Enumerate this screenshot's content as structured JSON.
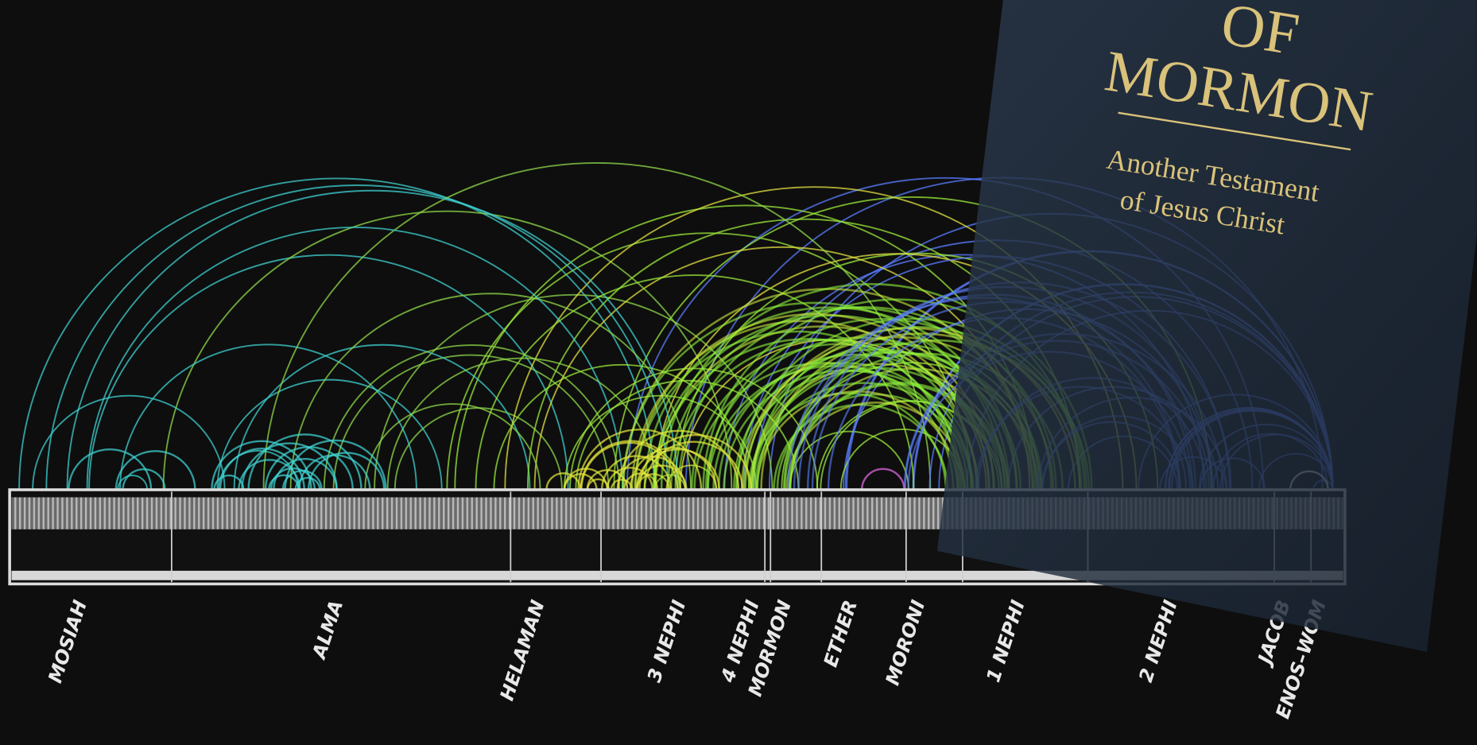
{
  "books": [
    "MOSIAH",
    "ALMA",
    "HELAMAN",
    "3 NEPHI",
    "4 NEPHI",
    "MORMON",
    "ETHER",
    "MORONI",
    "1 NEPHI",
    "2 NEPHI",
    "JACOB",
    "ENOS–WOM"
  ],
  "cover": {
    "line1": "OF",
    "line2": "MORMON",
    "subtitle1": "Another Testament",
    "subtitle2": "of Jesus Christ"
  }
}
